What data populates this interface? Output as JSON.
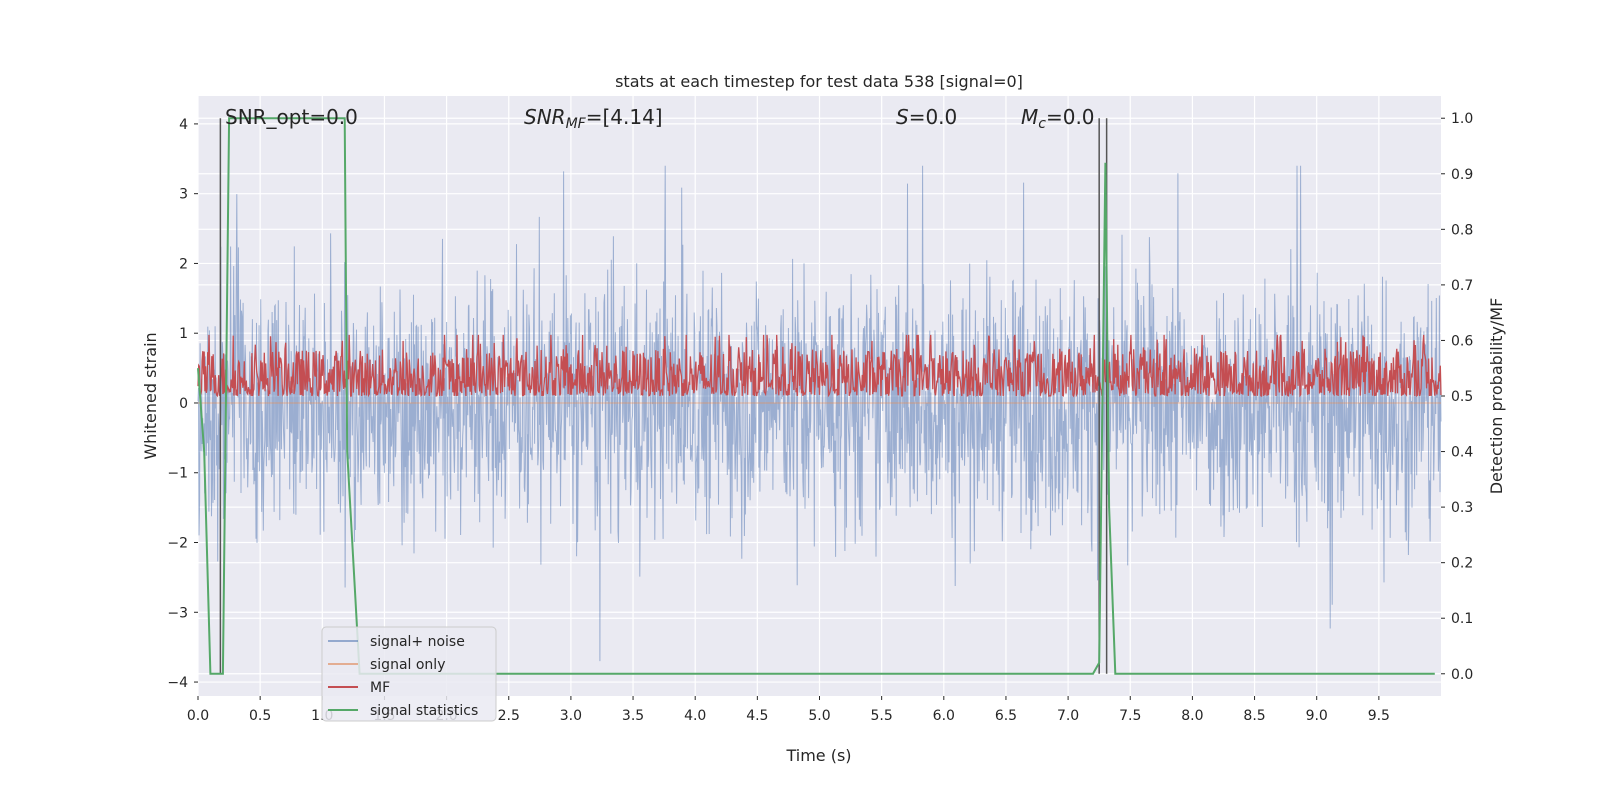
{
  "chart_data": {
    "type": "line",
    "title": "stats at each timestep for test data 538 [signal=0]",
    "xlabel": "Time (s)",
    "ylabel": "Whitened strain",
    "ylabel_right": "Detection probability/MF",
    "xlim": [
      0,
      10
    ],
    "ylim": [
      -4.2,
      4.4
    ],
    "ylim_right": [
      -0.04,
      1.04
    ],
    "x_ticks": [
      "0.0",
      "0.5",
      "1.0",
      "1.5",
      "2.0",
      "2.5",
      "3.0",
      "3.5",
      "4.0",
      "4.5",
      "5.0",
      "5.5",
      "6.0",
      "6.5",
      "7.0",
      "7.5",
      "8.0",
      "8.5",
      "9.0",
      "9.5"
    ],
    "y_ticks": [
      "−4",
      "−3",
      "−2",
      "−1",
      "0",
      "1",
      "2",
      "3",
      "4"
    ],
    "y_ticks_right": [
      "0.0",
      "0.1",
      "0.2",
      "0.3",
      "0.4",
      "0.5",
      "0.6",
      "0.7",
      "0.8",
      "0.9",
      "1.0"
    ],
    "grid": true,
    "background": "#eaeaf2",
    "annotations": {
      "snr_opt": "SNR_opt=0.0",
      "snr_mf_sym": "SNR",
      "snr_mf_sub": "MF",
      "snr_mf_val": "=[4.14]",
      "s_sym": "S",
      "s_val": "=0.0",
      "mc_sym": "M",
      "mc_sub": "c",
      "mc_val": "=0.0"
    },
    "vertical_lines_x": [
      0.18,
      7.25,
      7.31
    ],
    "series": [
      {
        "name": "signal+ noise",
        "color": "#4c72b0",
        "axis": "left",
        "amplitude_envelope": 2.2,
        "peak_values": [
          3.4,
          -3.7
        ]
      },
      {
        "name": "signal only",
        "color": "#dd8452",
        "axis": "left",
        "values": [
          0,
          0
        ]
      },
      {
        "name": "MF",
        "color": "#c44e52",
        "axis": "right",
        "range": [
          0.5,
          0.6
        ]
      },
      {
        "name": "signal statistics",
        "color": "#55a868",
        "axis": "right",
        "x": [
          0.0,
          0.05,
          0.1,
          0.17,
          0.2,
          0.25,
          0.3,
          0.5,
          1.0,
          1.18,
          1.2,
          1.3,
          2.0,
          5.0,
          7.0,
          7.2,
          7.25,
          7.3,
          7.33,
          7.38,
          8.0,
          8.5,
          9.0,
          9.95
        ],
        "values": [
          0.55,
          0.4,
          0.0,
          0.0,
          0.0,
          1.0,
          1.0,
          1.0,
          1.0,
          1.0,
          0.4,
          0.0,
          0.0,
          0.0,
          0.0,
          0.0,
          0.02,
          0.92,
          0.3,
          0.0,
          0.0,
          0.0,
          0.0,
          0.0
        ]
      }
    ],
    "legend": {
      "placement": "lower-left"
    }
  }
}
